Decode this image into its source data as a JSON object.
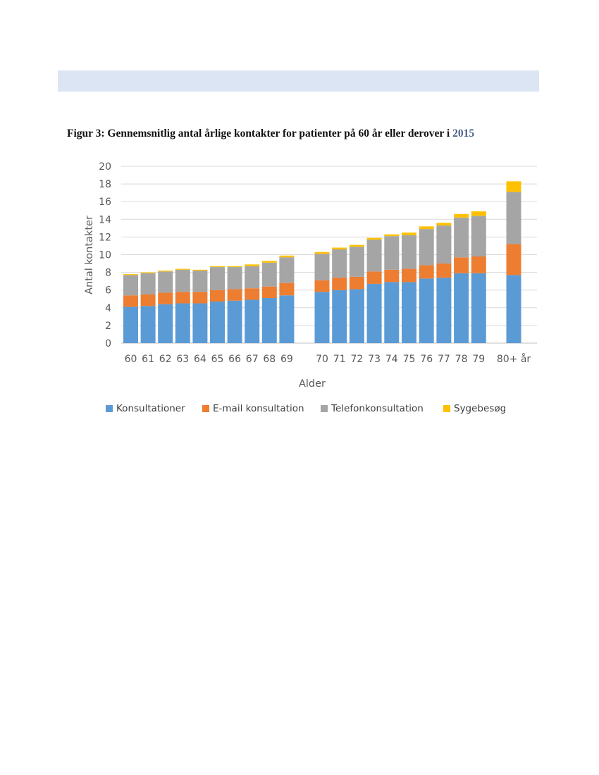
{
  "figure_title_prefix": "Figur 3: Gennemsnitlig antal årlige kontakter for patienter på 60 år eller derover i ",
  "figure_title_year": "2015",
  "chart_data": {
    "type": "bar",
    "stacked": true,
    "title": "",
    "xlabel": "Alder",
    "ylabel": "Antal kontakter",
    "ylim": [
      0,
      20
    ],
    "yticks": [
      0,
      2,
      4,
      6,
      8,
      10,
      12,
      14,
      16,
      18,
      20
    ],
    "grid": true,
    "legend_position": "bottom",
    "categories": [
      "60",
      "61",
      "62",
      "63",
      "64",
      "65",
      "66",
      "67",
      "68",
      "69",
      "70",
      "71",
      "72",
      "73",
      "74",
      "75",
      "76",
      "77",
      "78",
      "79",
      "80+ år"
    ],
    "series": [
      {
        "name": "Konsultationer",
        "color": "#5b9bd5",
        "values": [
          4.1,
          4.2,
          4.4,
          4.5,
          4.5,
          4.7,
          4.8,
          4.9,
          5.1,
          5.4,
          5.8,
          6.0,
          6.1,
          6.7,
          6.9,
          6.9,
          7.3,
          7.4,
          7.9,
          7.9,
          7.7
        ]
      },
      {
        "name": "E-mail konsultation",
        "color": "#ed7d31",
        "values": [
          1.3,
          1.3,
          1.3,
          1.3,
          1.3,
          1.3,
          1.3,
          1.3,
          1.3,
          1.4,
          1.3,
          1.4,
          1.4,
          1.4,
          1.4,
          1.5,
          1.5,
          1.6,
          1.8,
          1.9,
          3.5
        ]
      },
      {
        "name": "Telefonkonsultation",
        "color": "#a5a5a5",
        "values": [
          2.3,
          2.4,
          2.4,
          2.5,
          2.4,
          2.6,
          2.5,
          2.5,
          2.7,
          2.9,
          3.0,
          3.2,
          3.4,
          3.6,
          3.8,
          3.8,
          4.1,
          4.3,
          4.5,
          4.6,
          5.9
        ]
      },
      {
        "name": "Sygebesøg",
        "color": "#ffc000",
        "values": [
          0.1,
          0.1,
          0.1,
          0.1,
          0.1,
          0.1,
          0.1,
          0.2,
          0.2,
          0.2,
          0.2,
          0.2,
          0.2,
          0.2,
          0.2,
          0.3,
          0.3,
          0.3,
          0.4,
          0.5,
          1.2
        ]
      }
    ]
  }
}
